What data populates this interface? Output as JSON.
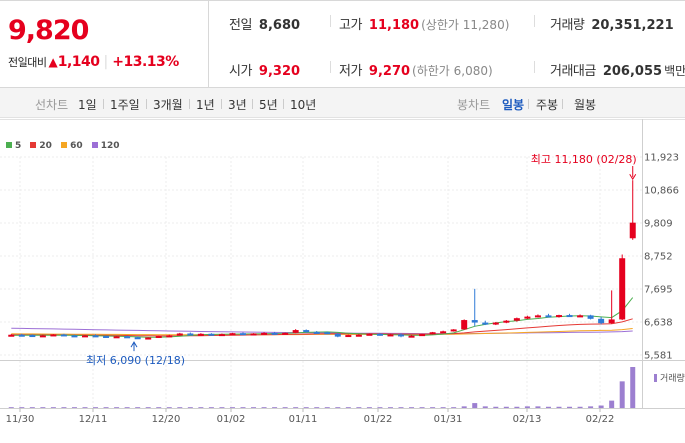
{
  "quote": {
    "price": "9,820",
    "change_label": "전일대비",
    "change_arrow": "▲",
    "change": "1,140",
    "change_pct": "+13.13%"
  },
  "stats": {
    "prev_close_label": "전일",
    "prev_close": "8,680",
    "high_label": "고가",
    "high": "11,180",
    "upper_limit": "(상한가 11,280)",
    "volume_label": "거래량",
    "volume": "20,351,221",
    "open_label": "시가",
    "open": "9,320",
    "low_label": "저가",
    "low": "9,270",
    "lower_limit": "(하한가 6,080)",
    "amount_label": "거래대금",
    "amount": "206,055",
    "amount_unit": "백만"
  },
  "tabs": {
    "line_label": "선차트",
    "line_tabs": [
      "1일",
      "1주일",
      "3개월",
      "1년",
      "3년",
      "5년",
      "10년"
    ],
    "candle_label": "봉차트",
    "candle_tabs": [
      "일봉",
      "주봉",
      "월봉"
    ],
    "active_candle": "일봉"
  },
  "legend": [
    {
      "label": "5",
      "color": "#4caf50"
    },
    {
      "label": "20",
      "color": "#e53935"
    },
    {
      "label": "60",
      "color": "#f5a623"
    },
    {
      "label": "120",
      "color": "#9c6fd6"
    }
  ],
  "annotations": {
    "high_note": "최고 11,180 (02/28)",
    "low_note": "최저 6,090 (12/18)",
    "volume_tag": "거래량"
  },
  "chart_data": {
    "type": "candlestick",
    "y_ticks": [
      11923,
      10866,
      9809,
      8752,
      7695,
      6638,
      5581
    ],
    "ylim": [
      5581,
      11923
    ],
    "x_ticks": [
      "11/30",
      "12/11",
      "12/20",
      "01/02",
      "01/11",
      "01/22",
      "01/31",
      "02/13",
      "02/22"
    ],
    "colors": {
      "up": "#e5001e",
      "down": "#2f7bd6",
      "volume": "#9c7fd0"
    },
    "candles": [
      [
        6200,
        6250,
        6180,
        6230
      ],
      [
        6230,
        6260,
        6200,
        6220
      ],
      [
        6220,
        6240,
        6190,
        6200
      ],
      [
        6200,
        6230,
        6180,
        6210
      ],
      [
        6210,
        6250,
        6190,
        6240
      ],
      [
        6240,
        6260,
        6200,
        6210
      ],
      [
        6210,
        6230,
        6170,
        6180
      ],
      [
        6180,
        6220,
        6170,
        6210
      ],
      [
        6210,
        6240,
        6180,
        6190
      ],
      [
        6190,
        6200,
        6140,
        6150
      ],
      [
        6150,
        6190,
        6140,
        6180
      ],
      [
        6180,
        6200,
        6140,
        6150
      ],
      [
        6150,
        6170,
        6100,
        6120
      ],
      [
        6120,
        6150,
        6090,
        6140
      ],
      [
        6140,
        6200,
        6130,
        6190
      ],
      [
        6190,
        6230,
        6170,
        6210
      ],
      [
        6210,
        6290,
        6200,
        6270
      ],
      [
        6270,
        6300,
        6220,
        6240
      ],
      [
        6240,
        6280,
        6220,
        6260
      ],
      [
        6260,
        6280,
        6220,
        6230
      ],
      [
        6230,
        6270,
        6200,
        6250
      ],
      [
        6250,
        6290,
        6230,
        6280
      ],
      [
        6280,
        6300,
        6230,
        6240
      ],
      [
        6240,
        6280,
        6220,
        6270
      ],
      [
        6270,
        6310,
        6250,
        6290
      ],
      [
        6290,
        6320,
        6250,
        6260
      ],
      [
        6260,
        6300,
        6240,
        6290
      ],
      [
        6290,
        6410,
        6280,
        6380
      ],
      [
        6380,
        6400,
        6300,
        6320
      ],
      [
        6320,
        6350,
        6290,
        6310
      ],
      [
        6310,
        6330,
        6250,
        6260
      ],
      [
        6260,
        6280,
        6150,
        6170
      ],
      [
        6170,
        6230,
        6160,
        6220
      ],
      [
        6220,
        6250,
        6190,
        6230
      ],
      [
        6230,
        6270,
        6220,
        6260
      ],
      [
        6260,
        6280,
        6200,
        6210
      ],
      [
        6210,
        6260,
        6190,
        6240
      ],
      [
        6240,
        6270,
        6150,
        6180
      ],
      [
        6180,
        6220,
        6160,
        6200
      ],
      [
        6200,
        6260,
        6190,
        6250
      ],
      [
        6250,
        6320,
        6240,
        6310
      ],
      [
        6310,
        6360,
        6290,
        6340
      ],
      [
        6340,
        6410,
        6330,
        6400
      ],
      [
        6400,
        6720,
        6390,
        6700
      ],
      [
        6700,
        7700,
        6500,
        6620
      ],
      [
        6620,
        6680,
        6540,
        6560
      ],
      [
        6560,
        6640,
        6540,
        6620
      ],
      [
        6620,
        6700,
        6600,
        6680
      ],
      [
        6680,
        6780,
        6650,
        6760
      ],
      [
        6760,
        6840,
        6730,
        6810
      ],
      [
        6810,
        6880,
        6780,
        6850
      ],
      [
        6850,
        6900,
        6790,
        6820
      ],
      [
        6820,
        6870,
        6780,
        6860
      ],
      [
        6860,
        6900,
        6800,
        6830
      ],
      [
        6830,
        6880,
        6800,
        6850
      ],
      [
        6850,
        6870,
        6720,
        6740
      ],
      [
        6740,
        6800,
        6560,
        6600
      ],
      [
        6600,
        7650,
        6580,
        6720
      ],
      [
        6720,
        8800,
        6700,
        8680
      ],
      [
        9320,
        11180,
        9270,
        9820
      ]
    ],
    "volumes": [
      2,
      2,
      2,
      2,
      2,
      2,
      2,
      2,
      2,
      2,
      2,
      2,
      2,
      2,
      2,
      2,
      2,
      2,
      2,
      2,
      2,
      2,
      2,
      2,
      2,
      2,
      2,
      2,
      2,
      2,
      2,
      2,
      2,
      2,
      2,
      2,
      2,
      2,
      2,
      2,
      2,
      2,
      2,
      4,
      12,
      4,
      3,
      3,
      3,
      4,
      4,
      3,
      3,
      3,
      3,
      4,
      6,
      18,
      65,
      100
    ],
    "ma5": [
      6210,
      6215,
      6218,
      6212,
      6215,
      6217,
      6210,
      6205,
      6200,
      6190,
      6180,
      6172,
      6160,
      6150,
      6148,
      6160,
      6180,
      6205,
      6230,
      6242,
      6245,
      6250,
      6255,
      6258,
      6262,
      6270,
      6275,
      6290,
      6305,
      6315,
      6320,
      6305,
      6280,
      6260,
      6245,
      6240,
      6230,
      6225,
      6215,
      6210,
      6225,
      6250,
      6290,
      6390,
      6500,
      6560,
      6610,
      6650,
      6680,
      6720,
      6750,
      6790,
      6810,
      6830,
      6840,
      6830,
      6800,
      6780,
      7000,
      7420
    ],
    "ma20": [
      6230,
      6230,
      6228,
      6226,
      6224,
      6222,
      6220,
      6218,
      6215,
      6212,
      6208,
      6204,
      6200,
      6196,
      6193,
      6192,
      6193,
      6196,
      6200,
      6205,
      6210,
      6215,
      6220,
      6225,
      6230,
      6236,
      6240,
      6246,
      6252,
      6258,
      6262,
      6264,
      6264,
      6262,
      6260,
      6258,
      6255,
      6252,
      6250,
      6250,
      6252,
      6258,
      6268,
      6290,
      6320,
      6345,
      6370,
      6395,
      6420,
      6448,
      6475,
      6500,
      6525,
      6545,
      6560,
      6570,
      6575,
      6585,
      6640,
      6740
    ],
    "ma60": [
      6260,
      6258,
      6256,
      6254,
      6252,
      6250,
      6248,
      6246,
      6244,
      6242,
      6240,
      6238,
      6236,
      6234,
      6232,
      6230,
      6229,
      6228,
      6228,
      6228,
      6228,
      6228,
      6229,
      6230,
      6231,
      6232,
      6234,
      6236,
      6238,
      6240,
      6241,
      6242,
      6242,
      6242,
      6242,
      6242,
      6242,
      6242,
      6242,
      6242,
      6243,
      6245,
      6248,
      6254,
      6262,
      6270,
      6278,
      6286,
      6295,
      6305,
      6315,
      6325,
      6335,
      6345,
      6355,
      6362,
      6368,
      6375,
      6395,
      6430
    ],
    "ma120": [
      6440,
      6434,
      6428,
      6422,
      6416,
      6410,
      6404,
      6398,
      6392,
      6386,
      6380,
      6374,
      6368,
      6362,
      6356,
      6350,
      6345,
      6340,
      6335,
      6330,
      6326,
      6322,
      6318,
      6314,
      6310,
      6306,
      6302,
      6298,
      6295,
      6292,
      6289,
      6286,
      6283,
      6280,
      6278,
      6276,
      6274,
      6272,
      6270,
      6268,
      6267,
      6266,
      6266,
      6267,
      6270,
      6273,
      6276,
      6280,
      6284,
      6288,
      6292,
      6296,
      6300,
      6304,
      6308,
      6312,
      6316,
      6320,
      6332,
      6350
    ]
  }
}
